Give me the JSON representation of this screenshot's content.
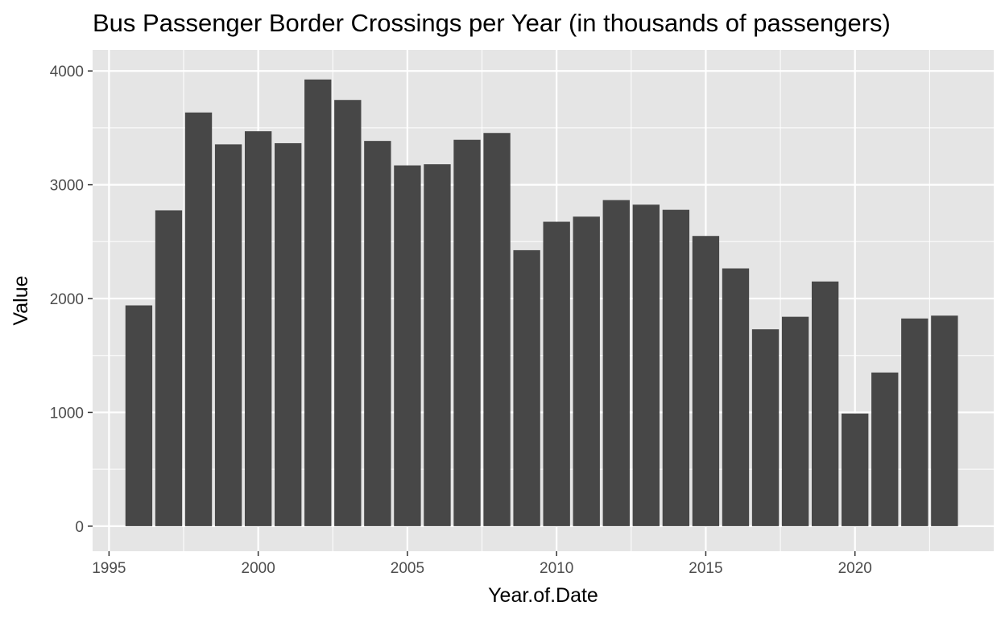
{
  "chart_data": {
    "type": "bar",
    "title": "Bus Passenger Border Crossings per Year (in thousands of passengers)",
    "xlabel": "Year.of.Date",
    "ylabel": "Value",
    "x": [
      1996,
      1997,
      1998,
      1999,
      2000,
      2001,
      2002,
      2003,
      2004,
      2005,
      2006,
      2007,
      2008,
      2009,
      2010,
      2011,
      2012,
      2013,
      2014,
      2015,
      2016,
      2017,
      2018,
      2019,
      2020,
      2021,
      2022,
      2023
    ],
    "values": [
      1940,
      2775,
      3635,
      3355,
      3470,
      3365,
      3925,
      3745,
      3385,
      3170,
      3180,
      3395,
      3455,
      2425,
      2675,
      2720,
      2865,
      2825,
      2780,
      2550,
      2265,
      1730,
      1840,
      2150,
      990,
      1350,
      1825,
      1850
    ],
    "xlim": [
      1994.6,
      1997.6
    ],
    "ylim": [
      -220,
      4185
    ],
    "x_ticks": [
      1995,
      2000,
      2005,
      2010,
      2015,
      2020
    ],
    "x_tick_labels": [
      "1995",
      "2000",
      "2005",
      "2010",
      "2015",
      "2020"
    ],
    "y_ticks": [
      0,
      1000,
      2000,
      3000,
      4000
    ],
    "y_tick_labels": [
      "0",
      "1000",
      "2000",
      "3000",
      "4000"
    ],
    "grid": true,
    "legend": "none",
    "colors": {
      "panel_background": "#E5E5E5",
      "grid_line": "#FFFFFF",
      "bar_fill": "#474747",
      "tick_mark": "#333333",
      "tick_text": "#4D4D4D",
      "text": "#000000"
    }
  }
}
